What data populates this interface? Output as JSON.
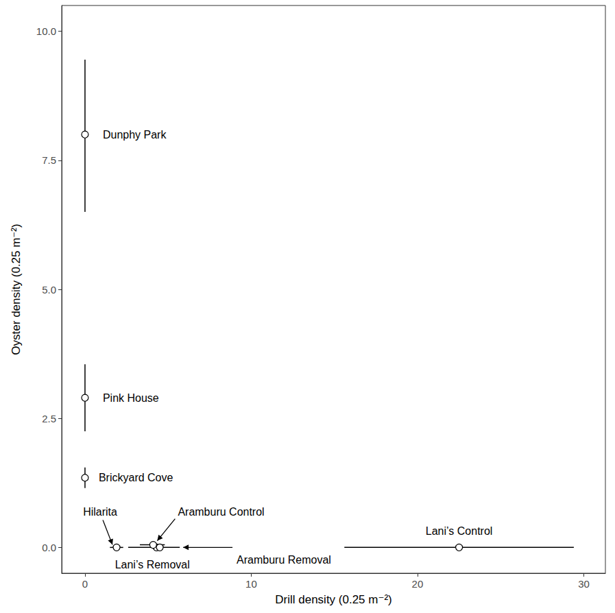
{
  "chart_data": {
    "type": "scatter",
    "x_label": "Drill density (0.25 m⁻²)",
    "y_label": "Oyster density (0.25 m⁻²)",
    "labels": [
      "Dunphy Park",
      "Pink House",
      "Brickyard Cove",
      "Hilarita",
      "Lani’s Removal",
      "Aramburu Control",
      "Aramburu Removal",
      "Lani’s Control"
    ],
    "x": [
      0,
      0,
      0,
      1.9,
      4.3,
      4.1,
      4.5,
      22.5
    ],
    "values": [
      8.0,
      2.9,
      1.35,
      0,
      0,
      0.05,
      0,
      0
    ],
    "x_error": [
      null,
      null,
      null,
      [
        1.5,
        2.3
      ],
      [
        2.6,
        5.7
      ],
      [
        3.3,
        4.8
      ],
      [
        4.3,
        4.7
      ],
      [
        15.6,
        29.4
      ]
    ],
    "y_error": [
      [
        6.5,
        9.45
      ],
      [
        2.25,
        3.55
      ],
      [
        1.15,
        1.55
      ],
      null,
      null,
      [
        0.0,
        0.1
      ],
      null,
      null
    ],
    "color": "#000000",
    "marker": "circle",
    "xlim": [
      -1.4,
      31.3
    ],
    "ylim": [
      -0.5,
      10.5
    ],
    "xticks": [
      0,
      10,
      20,
      30
    ],
    "yticks": [
      {
        "value": 0,
        "label": "0.0"
      },
      {
        "value": 2.5,
        "label": "2.5"
      },
      {
        "value": 5,
        "label": "5.0"
      },
      {
        "value": 7.5,
        "label": "7.5"
      },
      {
        "value": 10,
        "label": "10.0"
      }
    ],
    "grid": false
  }
}
